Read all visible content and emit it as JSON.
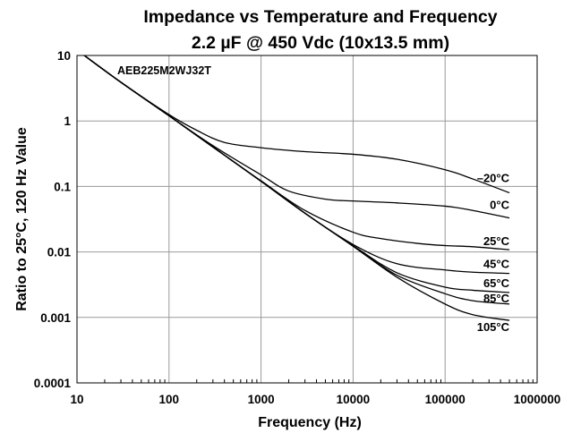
{
  "chart_data": {
    "type": "line",
    "title": "Impedance vs Temperature and Frequency",
    "subtitle": "2.2 µF @ 450 Vdc (10x13.5 mm)",
    "annotation": "AEB225M2WJ32T",
    "xlabel": "Frequency (Hz)",
    "ylabel": "Ratio to 25°C, 120 Hz Value",
    "x_scale": "log",
    "y_scale": "log",
    "xlim": [
      10,
      1000000
    ],
    "ylim": [
      0.0001,
      10
    ],
    "grid": true,
    "x_ticks": [
      10,
      100,
      1000,
      10000,
      100000,
      1000000
    ],
    "x_tick_labels": [
      "10",
      "100",
      "1000",
      "10000",
      "100000",
      "1000000"
    ],
    "y_ticks": [
      0.0001,
      0.001,
      0.01,
      0.1,
      1,
      10
    ],
    "y_tick_labels": [
      "0.0001",
      "0.001",
      "0.01",
      "0.1",
      "1",
      "10"
    ],
    "series": [
      {
        "name": "–20°C",
        "x": [
          12,
          30,
          100,
          200,
          400,
          1000,
          3000,
          10000,
          30000,
          100000,
          200000,
          500000
        ],
        "y": [
          10,
          3.9,
          1.25,
          0.72,
          0.47,
          0.39,
          0.34,
          0.31,
          0.26,
          0.18,
          0.13,
          0.08
        ]
      },
      {
        "name": "0°C",
        "x": [
          12,
          30,
          100,
          300,
          1000,
          2000,
          5000,
          10000,
          30000,
          100000,
          200000,
          500000
        ],
        "y": [
          10,
          3.9,
          1.2,
          0.42,
          0.15,
          0.085,
          0.064,
          0.06,
          0.056,
          0.05,
          0.043,
          0.033
        ]
      },
      {
        "name": "25°C",
        "x": [
          12,
          30,
          100,
          300,
          1000,
          3000,
          10000,
          20000,
          50000,
          100000,
          200000,
          500000
        ],
        "y": [
          10,
          3.9,
          1.2,
          0.4,
          0.122,
          0.043,
          0.02,
          0.016,
          0.0135,
          0.0125,
          0.012,
          0.0108
        ]
      },
      {
        "name": "45°C",
        "x": [
          12,
          30,
          100,
          300,
          1000,
          3000,
          10000,
          30000,
          100000,
          200000,
          500000
        ],
        "y": [
          10,
          3.9,
          1.2,
          0.4,
          0.12,
          0.039,
          0.013,
          0.0066,
          0.0053,
          0.0049,
          0.0047
        ]
      },
      {
        "name": "65°C",
        "x": [
          12,
          30,
          100,
          300,
          1000,
          3000,
          10000,
          30000,
          100000,
          200000,
          500000
        ],
        "y": [
          10,
          3.9,
          1.2,
          0.4,
          0.12,
          0.039,
          0.0125,
          0.0048,
          0.0029,
          0.0026,
          0.0024
        ]
      },
      {
        "name": "85°C",
        "x": [
          12,
          30,
          100,
          300,
          1000,
          3000,
          10000,
          30000,
          100000,
          200000,
          500000
        ],
        "y": [
          10,
          3.9,
          1.2,
          0.4,
          0.12,
          0.039,
          0.0123,
          0.0044,
          0.0023,
          0.0018,
          0.0016
        ]
      },
      {
        "name": "105°C",
        "x": [
          12,
          30,
          100,
          300,
          1000,
          3000,
          10000,
          30000,
          100000,
          200000,
          500000
        ],
        "y": [
          10,
          3.9,
          1.2,
          0.4,
          0.12,
          0.039,
          0.0122,
          0.0041,
          0.0016,
          0.0011,
          0.0009
        ]
      }
    ]
  }
}
